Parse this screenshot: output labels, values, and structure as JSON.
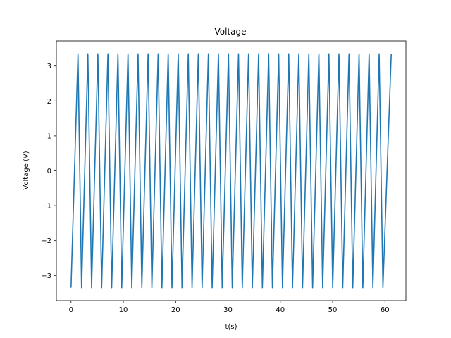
{
  "chart_data": {
    "type": "line",
    "title": "Voltage",
    "xlabel": "t(s)",
    "ylabel": "Voltage (V)",
    "xlim": [
      -2.8,
      64.0
    ],
    "ylim": [
      -3.72,
      3.72
    ],
    "xticks": [
      0,
      10,
      20,
      30,
      40,
      50,
      60
    ],
    "yticks": [
      -3,
      -2,
      -1,
      0,
      1,
      2,
      3
    ],
    "ytick_labels": [
      "−3",
      "−2",
      "−1",
      "0",
      "1",
      "2",
      "3"
    ],
    "grid": false,
    "color": "#1f77b4",
    "series": [
      {
        "x": [
          0.0,
          1.33,
          2.02,
          3.22,
          3.93,
          5.13,
          5.85,
          7.05,
          7.77,
          8.97,
          9.69,
          10.89,
          11.61,
          12.81,
          13.53,
          14.73,
          15.45,
          16.65,
          17.37,
          18.57,
          19.29,
          20.49,
          21.21,
          22.41,
          23.13,
          24.33,
          25.05,
          26.25,
          26.97,
          28.17,
          28.89,
          30.09,
          30.81,
          32.01,
          32.73,
          33.93,
          34.65,
          35.85,
          36.57,
          37.77,
          38.49,
          39.69,
          40.41,
          41.61,
          42.33,
          43.53,
          44.25,
          45.45,
          46.17,
          47.37,
          48.09,
          49.29,
          50.01,
          51.21,
          51.93,
          53.13,
          53.85,
          55.05,
          55.77,
          56.97,
          57.69,
          58.89,
          59.61,
          61.2
        ],
        "y": [
          -3.35,
          3.35,
          -3.35,
          3.35,
          -3.35,
          3.35,
          -3.35,
          3.35,
          -3.35,
          3.35,
          -3.35,
          3.35,
          -3.35,
          3.35,
          -3.35,
          3.35,
          -3.35,
          3.35,
          -3.35,
          3.35,
          -3.35,
          3.35,
          -3.35,
          3.35,
          -3.35,
          3.35,
          -3.35,
          3.35,
          -3.35,
          3.35,
          -3.35,
          3.35,
          -3.35,
          3.35,
          -3.35,
          3.35,
          -3.35,
          3.35,
          -3.35,
          3.35,
          -3.35,
          3.35,
          -3.35,
          3.35,
          -3.35,
          3.35,
          -3.35,
          3.35,
          -3.35,
          3.35,
          -3.35,
          3.35,
          -3.35,
          3.35,
          -3.35,
          3.35,
          -3.35,
          3.35,
          -3.35,
          3.35,
          -3.35,
          3.35,
          -3.35,
          3.35
        ]
      }
    ]
  }
}
